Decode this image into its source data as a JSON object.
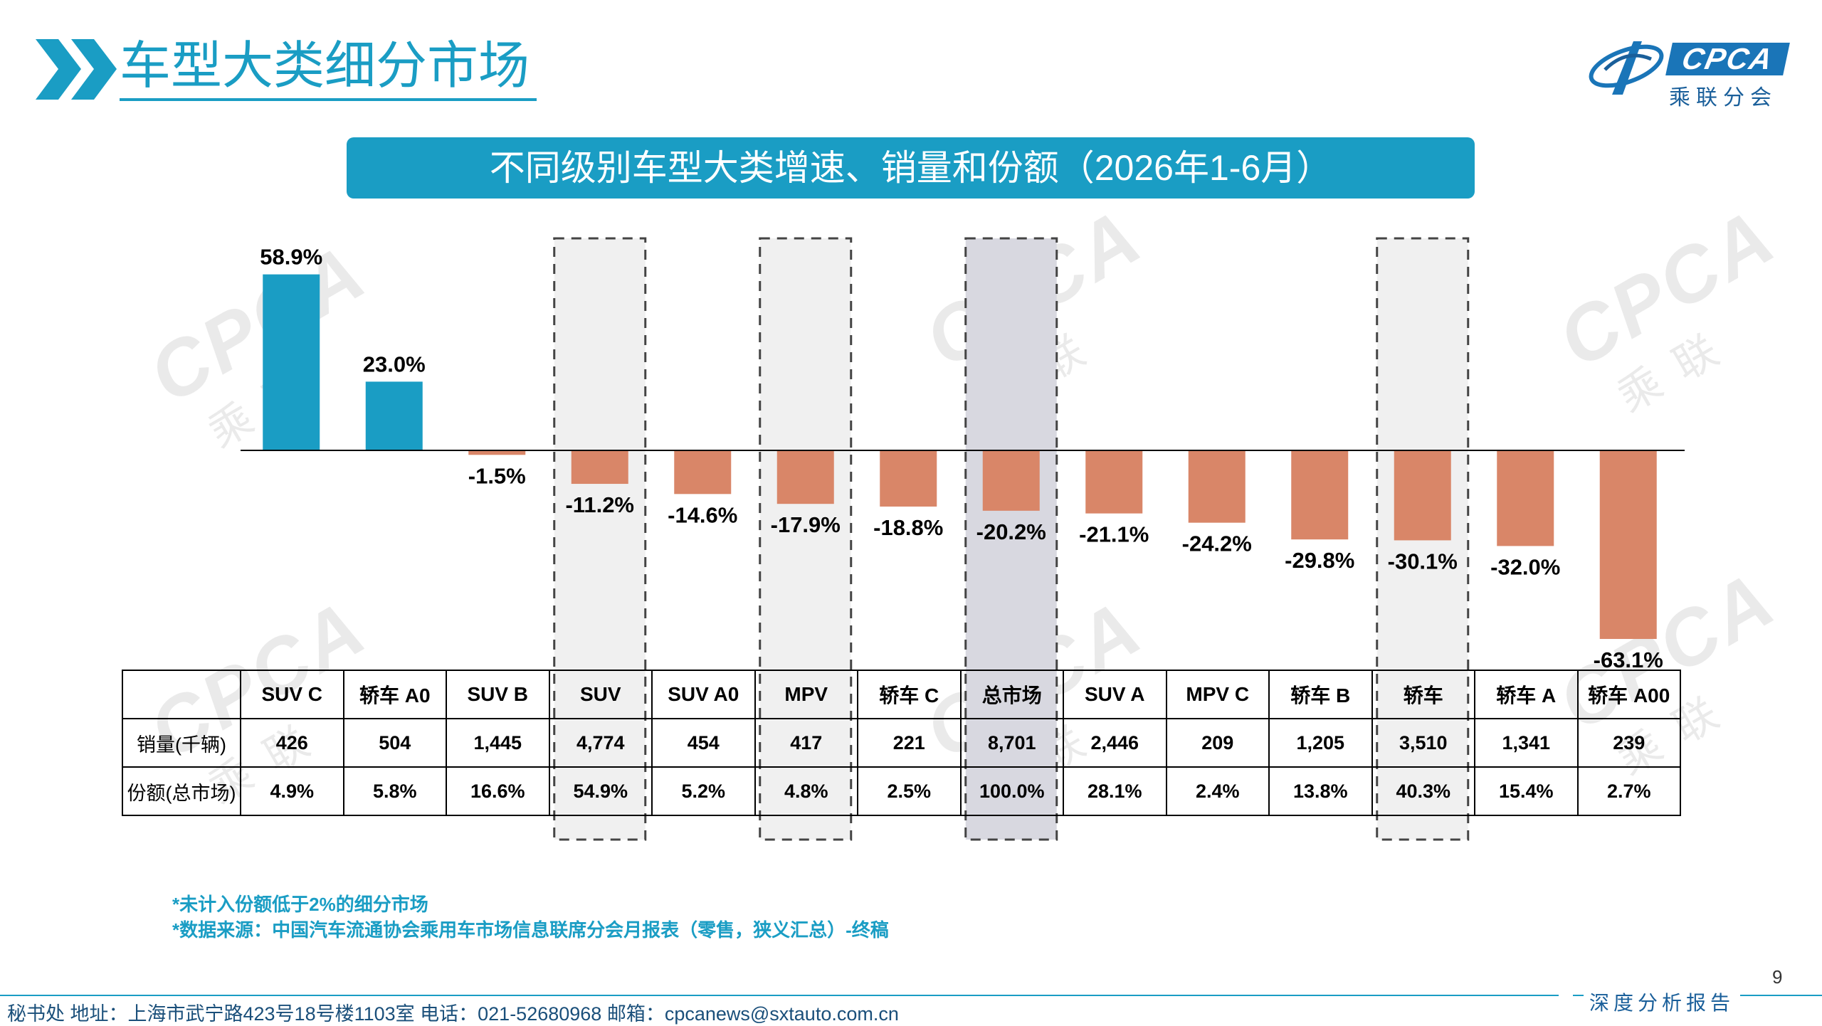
{
  "header": {
    "title": "车型大类细分市场",
    "logo": {
      "brand": "CPCA",
      "subtitle": "乘联分会"
    }
  },
  "colors": {
    "accent": "#1a9dc4",
    "positive_bar": "#1a9dc4",
    "negative_bar": "#d98668",
    "highlight_box": "#f0f0f0",
    "highlight_box_total": "#d8d8e0"
  },
  "chart_data": {
    "type": "bar",
    "title": "不同级别车型大类增速、销量和份额（2026年1-6月）",
    "categories": [
      "SUV C",
      "轿车 A0",
      "SUV B",
      "SUV",
      "SUV A0",
      "MPV",
      "轿车 C",
      "总市场",
      "SUV A",
      "MPV C",
      "轿车 B",
      "轿车",
      "轿车 A",
      "轿车 A00"
    ],
    "series": [
      {
        "values": [
          58.9,
          23.0,
          -1.5,
          -11.2,
          -14.6,
          -17.9,
          -18.8,
          -20.2,
          -21.1,
          -24.2,
          -29.8,
          -30.1,
          -32.0,
          -63.1
        ]
      }
    ],
    "value_labels": [
      "58.9%",
      "23.0%",
      "-1.5%",
      "-11.2%",
      "-14.6%",
      "-17.9%",
      "-18.8%",
      "-20.2%",
      "-21.1%",
      "-24.2%",
      "-29.8%",
      "-30.1%",
      "-32.0%",
      "-63.1%"
    ],
    "highlighted_categories": [
      "SUV",
      "MPV",
      "总市场",
      "轿车"
    ],
    "table": {
      "rows": [
        {
          "label": "销量(千辆)",
          "values": [
            "426",
            "504",
            "1,445",
            "4,774",
            "454",
            "417",
            "221",
            "8,701",
            "2,446",
            "209",
            "1,205",
            "3,510",
            "1,341",
            "239"
          ]
        },
        {
          "label": "份额(总市场)",
          "values": [
            "4.9%",
            "5.8%",
            "16.6%",
            "54.9%",
            "5.2%",
            "4.8%",
            "2.5%",
            "100.0%",
            "28.1%",
            "2.4%",
            "13.8%",
            "40.3%",
            "15.4%",
            "2.7%"
          ]
        }
      ]
    }
  },
  "notes": [
    "*未计入份额低于2%的细分市场",
    "*数据来源：中国汽车流通协会乘用车市场信息联席分会月报表（零售，狭义汇总）-终稿"
  ],
  "footer": {
    "page_number": "9",
    "tag": "深度分析报告",
    "contact": "秘书处   地址：上海市武宁路423号18号楼1103室  电话：021-52680968   邮箱：cpcanews@sxtauto.com.cn"
  }
}
